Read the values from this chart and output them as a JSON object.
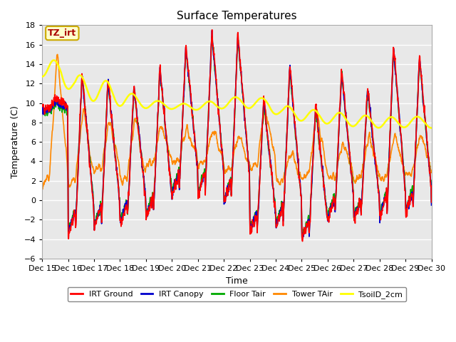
{
  "title": "Surface Temperatures",
  "ylabel": "Temperature (C)",
  "xlabel": "Time",
  "ylim": [
    -6,
    18
  ],
  "yticks": [
    -6,
    -4,
    -2,
    0,
    2,
    4,
    6,
    8,
    10,
    12,
    14,
    16,
    18
  ],
  "xtick_labels": [
    "Dec 15",
    "Dec 16",
    "Dec 17",
    "Dec 18",
    "Dec 19",
    "Dec 20",
    "Dec 21",
    "Dec 22",
    "Dec 23",
    "Dec 24",
    "Dec 25",
    "Dec 26",
    "Dec 27",
    "Dec 28",
    "Dec 29",
    "Dec 30"
  ],
  "annotation_text": "TZ_irt",
  "annotation_bg": "#ffffcc",
  "annotation_border": "#ccaa00",
  "annotation_text_color": "#aa0000",
  "series_colors": {
    "IRT Ground": "#ff0000",
    "IRT Canopy": "#0000cc",
    "Floor Tair": "#00aa00",
    "Tower TAir": "#ff8800",
    "TsoilD_2cm": "#ffff00"
  },
  "series_lw": {
    "IRT Ground": 1.2,
    "IRT Canopy": 1.2,
    "Floor Tair": 1.2,
    "Tower TAir": 1.2,
    "TsoilD_2cm": 1.8
  },
  "plot_bg": "#e8e8e8",
  "grid_color": "#ffffff",
  "n_days": 15,
  "pts_per_day": 144,
  "seed": 42,
  "day_highs_ground": [
    10.5,
    13.2,
    12.5,
    12.0,
    13.8,
    16.0,
    17.5,
    17.2,
    10.5,
    14.0,
    9.8,
    13.5,
    11.8,
    16.0,
    15.0
  ],
  "day_lows_ground": [
    9.5,
    -3.8,
    -3.0,
    -2.5,
    -2.0,
    0.5,
    0.2,
    -0.5,
    -3.5,
    -3.0,
    -4.2,
    -2.0,
    -2.2,
    -2.0,
    -1.5
  ],
  "day_highs_canopy": [
    10.2,
    13.0,
    12.3,
    11.8,
    13.5,
    15.8,
    17.2,
    16.9,
    10.2,
    13.7,
    9.6,
    13.2,
    11.5,
    15.7,
    14.7
  ],
  "day_lows_canopy": [
    9.2,
    -3.5,
    -2.8,
    -2.2,
    -1.8,
    0.7,
    0.5,
    -0.3,
    -3.3,
    -2.8,
    -4.0,
    -1.8,
    -2.0,
    -1.8,
    -1.3
  ],
  "day_highs_floor": [
    10.0,
    13.0,
    12.2,
    11.5,
    13.3,
    15.5,
    17.0,
    16.8,
    10.0,
    13.5,
    9.5,
    13.0,
    11.3,
    15.5,
    14.5
  ],
  "day_lows_floor": [
    9.0,
    -3.2,
    -2.5,
    -2.0,
    -1.5,
    1.0,
    0.8,
    0.0,
    -3.0,
    -2.5,
    -3.8,
    -1.5,
    -1.8,
    -1.5,
    -1.0
  ],
  "day_highs_tower": [
    15.2,
    9.5,
    8.2,
    8.5,
    8.0,
    7.5,
    7.5,
    7.0,
    9.5,
    5.0,
    9.2,
    6.0,
    6.5,
    7.0,
    7.0
  ],
  "day_lows_tower": [
    1.2,
    1.5,
    3.0,
    1.8,
    3.5,
    3.8,
    3.5,
    3.0,
    3.2,
    1.8,
    2.0,
    2.2,
    2.0,
    2.0,
    2.5
  ],
  "day_highs_soil": [
    15.2,
    13.8,
    13.2,
    11.5,
    10.5,
    10.2,
    10.5,
    11.0,
    11.0,
    10.2,
    9.8,
    9.5,
    9.2,
    9.0,
    9.0
  ],
  "day_lows_soil": [
    11.5,
    9.5,
    9.0,
    9.0,
    9.2,
    9.0,
    9.0,
    9.2,
    8.8,
    7.8,
    7.5,
    7.2,
    7.0,
    7.0,
    7.2
  ]
}
